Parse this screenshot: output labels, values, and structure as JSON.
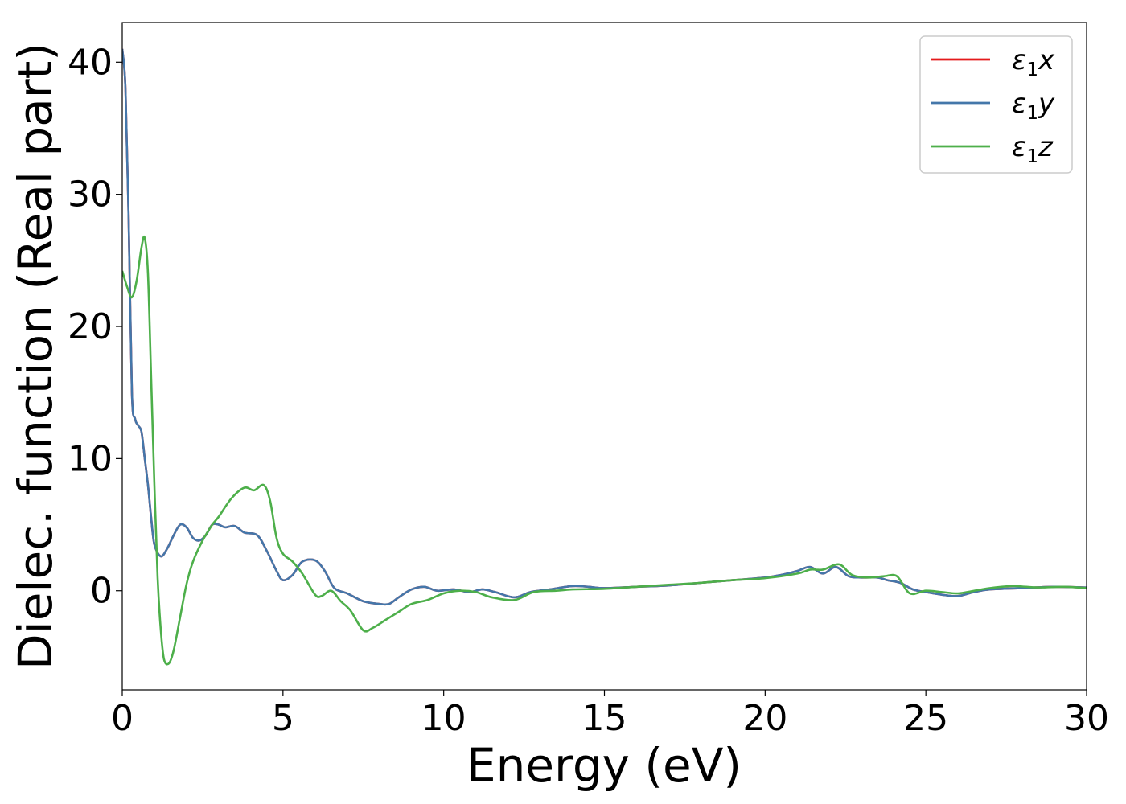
{
  "chart_data": {
    "type": "line",
    "title": "",
    "xlabel": "Energy (eV)",
    "ylabel": "Dielec. function (Real part)",
    "xlim": [
      0,
      30
    ],
    "ylim": [
      -7.5,
      43
    ],
    "xticks": [
      0,
      5,
      10,
      15,
      20,
      25,
      30
    ],
    "yticks": [
      0,
      10,
      20,
      30,
      40
    ],
    "xtick_labels": [
      "0",
      "5",
      "10",
      "15",
      "20",
      "25",
      "30"
    ],
    "ytick_labels": [
      "0",
      "10",
      "20",
      "30",
      "40"
    ],
    "grid": false,
    "legend_position": "top-right",
    "series": [
      {
        "name": "ε₁x",
        "legend_main": "ε",
        "legend_sub": "1",
        "legend_var": "x",
        "color": "#e41a1c",
        "points": [
          [
            0,
            41
          ],
          [
            0.1,
            38
          ],
          [
            0.2,
            28
          ],
          [
            0.3,
            15
          ],
          [
            0.4,
            13
          ],
          [
            0.5,
            12.5
          ],
          [
            0.6,
            12
          ],
          [
            0.7,
            10
          ],
          [
            0.8,
            8
          ],
          [
            0.9,
            5.5
          ],
          [
            1.0,
            3.5
          ],
          [
            1.2,
            2.6
          ],
          [
            1.4,
            3.2
          ],
          [
            1.6,
            4.2
          ],
          [
            1.8,
            5.0
          ],
          [
            2.0,
            4.8
          ],
          [
            2.2,
            4.0
          ],
          [
            2.4,
            3.8
          ],
          [
            2.6,
            4.2
          ],
          [
            2.8,
            5.0
          ],
          [
            3.0,
            5.0
          ],
          [
            3.2,
            4.8
          ],
          [
            3.5,
            4.9
          ],
          [
            3.8,
            4.4
          ],
          [
            4.2,
            4.2
          ],
          [
            4.5,
            3.0
          ],
          [
            4.8,
            1.5
          ],
          [
            5.0,
            0.8
          ],
          [
            5.3,
            1.2
          ],
          [
            5.6,
            2.2
          ],
          [
            6.0,
            2.3
          ],
          [
            6.3,
            1.5
          ],
          [
            6.6,
            0.2
          ],
          [
            7.0,
            -0.2
          ],
          [
            7.5,
            -0.8
          ],
          [
            8.0,
            -1.0
          ],
          [
            8.3,
            -1.0
          ],
          [
            8.6,
            -0.5
          ],
          [
            9.0,
            0.1
          ],
          [
            9.4,
            0.3
          ],
          [
            9.8,
            0.0
          ],
          [
            10.3,
            0.1
          ],
          [
            10.8,
            -0.1
          ],
          [
            11.2,
            0.1
          ],
          [
            11.6,
            -0.1
          ],
          [
            12.2,
            -0.5
          ],
          [
            12.7,
            -0.1
          ],
          [
            13.3,
            0.1
          ],
          [
            14.0,
            0.35
          ],
          [
            14.5,
            0.3
          ],
          [
            15.0,
            0.2
          ],
          [
            16.0,
            0.3
          ],
          [
            17.0,
            0.4
          ],
          [
            18.0,
            0.6
          ],
          [
            19.0,
            0.8
          ],
          [
            20.0,
            1.0
          ],
          [
            20.5,
            1.2
          ],
          [
            21.0,
            1.5
          ],
          [
            21.4,
            1.8
          ],
          [
            21.8,
            1.3
          ],
          [
            22.2,
            1.8
          ],
          [
            22.6,
            1.1
          ],
          [
            23.0,
            1.0
          ],
          [
            23.5,
            1.0
          ],
          [
            23.8,
            0.8
          ],
          [
            24.2,
            0.6
          ],
          [
            24.6,
            0.1
          ],
          [
            25.0,
            -0.1
          ],
          [
            25.5,
            -0.3
          ],
          [
            26.0,
            -0.4
          ],
          [
            26.5,
            -0.1
          ],
          [
            27.0,
            0.1
          ],
          [
            28.0,
            0.2
          ],
          [
            29.0,
            0.3
          ],
          [
            30,
            0.25
          ]
        ]
      },
      {
        "name": "ε₁y",
        "legend_main": "ε",
        "legend_sub": "1",
        "legend_var": "y",
        "color": "#4477aa",
        "points": [
          [
            0,
            41
          ],
          [
            0.1,
            38
          ],
          [
            0.2,
            28
          ],
          [
            0.3,
            15
          ],
          [
            0.4,
            13
          ],
          [
            0.5,
            12.5
          ],
          [
            0.6,
            12
          ],
          [
            0.7,
            10
          ],
          [
            0.8,
            8
          ],
          [
            0.9,
            5.5
          ],
          [
            1.0,
            3.5
          ],
          [
            1.2,
            2.6
          ],
          [
            1.4,
            3.2
          ],
          [
            1.6,
            4.2
          ],
          [
            1.8,
            5.0
          ],
          [
            2.0,
            4.8
          ],
          [
            2.2,
            4.0
          ],
          [
            2.4,
            3.8
          ],
          [
            2.6,
            4.2
          ],
          [
            2.8,
            5.0
          ],
          [
            3.0,
            5.0
          ],
          [
            3.2,
            4.8
          ],
          [
            3.5,
            4.9
          ],
          [
            3.8,
            4.4
          ],
          [
            4.2,
            4.2
          ],
          [
            4.5,
            3.0
          ],
          [
            4.8,
            1.5
          ],
          [
            5.0,
            0.8
          ],
          [
            5.3,
            1.2
          ],
          [
            5.6,
            2.2
          ],
          [
            6.0,
            2.3
          ],
          [
            6.3,
            1.5
          ],
          [
            6.6,
            0.2
          ],
          [
            7.0,
            -0.2
          ],
          [
            7.5,
            -0.8
          ],
          [
            8.0,
            -1.0
          ],
          [
            8.3,
            -1.0
          ],
          [
            8.6,
            -0.5
          ],
          [
            9.0,
            0.1
          ],
          [
            9.4,
            0.3
          ],
          [
            9.8,
            0.0
          ],
          [
            10.3,
            0.1
          ],
          [
            10.8,
            -0.1
          ],
          [
            11.2,
            0.1
          ],
          [
            11.6,
            -0.1
          ],
          [
            12.2,
            -0.5
          ],
          [
            12.7,
            -0.1
          ],
          [
            13.3,
            0.1
          ],
          [
            14.0,
            0.35
          ],
          [
            14.5,
            0.3
          ],
          [
            15.0,
            0.2
          ],
          [
            16.0,
            0.3
          ],
          [
            17.0,
            0.4
          ],
          [
            18.0,
            0.6
          ],
          [
            19.0,
            0.8
          ],
          [
            20.0,
            1.0
          ],
          [
            20.5,
            1.2
          ],
          [
            21.0,
            1.5
          ],
          [
            21.4,
            1.8
          ],
          [
            21.8,
            1.3
          ],
          [
            22.2,
            1.8
          ],
          [
            22.6,
            1.1
          ],
          [
            23.0,
            1.0
          ],
          [
            23.5,
            1.0
          ],
          [
            23.8,
            0.8
          ],
          [
            24.2,
            0.6
          ],
          [
            24.6,
            0.1
          ],
          [
            25.0,
            -0.1
          ],
          [
            25.5,
            -0.3
          ],
          [
            26.0,
            -0.4
          ],
          [
            26.5,
            -0.1
          ],
          [
            27.0,
            0.1
          ],
          [
            28.0,
            0.2
          ],
          [
            29.0,
            0.3
          ],
          [
            30,
            0.25
          ]
        ]
      },
      {
        "name": "ε₁z",
        "legend_main": "ε",
        "legend_sub": "1",
        "legend_var": "z",
        "color": "#4daf4a",
        "points": [
          [
            0,
            24.2
          ],
          [
            0.15,
            23
          ],
          [
            0.3,
            22.2
          ],
          [
            0.45,
            23.5
          ],
          [
            0.6,
            26
          ],
          [
            0.7,
            26.7
          ],
          [
            0.8,
            24
          ],
          [
            0.9,
            16
          ],
          [
            1.0,
            8
          ],
          [
            1.1,
            1
          ],
          [
            1.2,
            -3
          ],
          [
            1.3,
            -5.2
          ],
          [
            1.45,
            -5.5
          ],
          [
            1.6,
            -4.5
          ],
          [
            1.8,
            -2
          ],
          [
            2.0,
            0.5
          ],
          [
            2.2,
            2.2
          ],
          [
            2.5,
            3.8
          ],
          [
            2.8,
            5.0
          ],
          [
            3.0,
            5.6
          ],
          [
            3.4,
            7.0
          ],
          [
            3.8,
            7.8
          ],
          [
            4.1,
            7.6
          ],
          [
            4.4,
            8.0
          ],
          [
            4.6,
            6.8
          ],
          [
            4.8,
            4.0
          ],
          [
            5.0,
            2.8
          ],
          [
            5.3,
            2.2
          ],
          [
            5.6,
            1.3
          ],
          [
            6.0,
            -0.3
          ],
          [
            6.2,
            -0.4
          ],
          [
            6.5,
            0.0
          ],
          [
            6.8,
            -0.8
          ],
          [
            7.1,
            -1.5
          ],
          [
            7.5,
            -3.0
          ],
          [
            7.8,
            -2.8
          ],
          [
            8.2,
            -2.2
          ],
          [
            8.6,
            -1.6
          ],
          [
            9.0,
            -1.0
          ],
          [
            9.5,
            -0.7
          ],
          [
            10.0,
            -0.2
          ],
          [
            10.5,
            0.0
          ],
          [
            11.0,
            -0.1
          ],
          [
            11.5,
            -0.5
          ],
          [
            12.2,
            -0.7
          ],
          [
            12.8,
            -0.1
          ],
          [
            13.5,
            0.0
          ],
          [
            14.0,
            0.1
          ],
          [
            15.0,
            0.15
          ],
          [
            16.0,
            0.3
          ],
          [
            17.0,
            0.45
          ],
          [
            18.0,
            0.6
          ],
          [
            19.0,
            0.8
          ],
          [
            20.0,
            0.95
          ],
          [
            21.0,
            1.3
          ],
          [
            21.4,
            1.6
          ],
          [
            21.8,
            1.6
          ],
          [
            22.3,
            2.0
          ],
          [
            22.7,
            1.2
          ],
          [
            23.2,
            1.0
          ],
          [
            23.7,
            1.1
          ],
          [
            24.1,
            1.1
          ],
          [
            24.5,
            -0.2
          ],
          [
            25.0,
            0.0
          ],
          [
            25.5,
            -0.1
          ],
          [
            26.0,
            -0.2
          ],
          [
            26.5,
            0.0
          ],
          [
            27.0,
            0.2
          ],
          [
            27.7,
            0.35
          ],
          [
            28.5,
            0.25
          ],
          [
            29.3,
            0.3
          ],
          [
            30,
            0.2
          ]
        ]
      }
    ]
  }
}
